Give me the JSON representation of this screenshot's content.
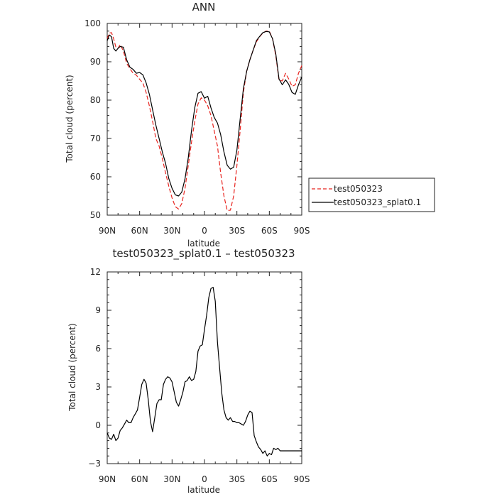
{
  "chart_data": [
    {
      "type": "line",
      "title": "ANN",
      "xlabel": "latitude",
      "ylabel": "Total cloud (percent)",
      "xlim": [
        90,
        -90
      ],
      "ylim": [
        50,
        100
      ],
      "x_ticks": [
        {
          "v": 90,
          "label": "90N"
        },
        {
          "v": 60,
          "label": "60N"
        },
        {
          "v": 30,
          "label": "30N"
        },
        {
          "v": 0,
          "label": "0"
        },
        {
          "v": -30,
          "label": "30S"
        },
        {
          "v": -60,
          "label": "60S"
        },
        {
          "v": -90,
          "label": "90S"
        }
      ],
      "y_ticks": [
        "50",
        "60",
        "70",
        "80",
        "90",
        "100"
      ],
      "y_tick_values": [
        50,
        60,
        70,
        80,
        90,
        100
      ],
      "legend_position": "right",
      "series": [
        {
          "name": "test050323",
          "color": "#e8241f",
          "dash": "dashed",
          "x": [
            90,
            88,
            86,
            84,
            82,
            80,
            78,
            75,
            72,
            69,
            66,
            63,
            60,
            57,
            54,
            51,
            48,
            45,
            42,
            39,
            36,
            33,
            30,
            27,
            24,
            21,
            18,
            15,
            12,
            9,
            6,
            3,
            0,
            -3,
            -6,
            -9,
            -12,
            -15,
            -18,
            -21,
            -24,
            -27,
            -30,
            -33,
            -36,
            -39,
            -42,
            -45,
            -48,
            -51,
            -54,
            -57,
            -60,
            -63,
            -66,
            -69,
            -72,
            -75,
            -78,
            -81,
            -84,
            -87,
            -90
          ],
          "y": [
            96,
            97.5,
            97.6,
            96,
            93.8,
            93.5,
            94.5,
            92.8,
            89.6,
            88.2,
            87,
            86.5,
            85.4,
            84.5,
            82,
            78.5,
            74.5,
            70,
            68,
            64.8,
            61,
            57.5,
            54.5,
            52.2,
            51.6,
            53,
            57,
            63,
            69,
            74.5,
            79,
            80.6,
            80,
            78.5,
            76,
            72,
            68,
            61,
            55,
            51.2,
            51.3,
            55,
            63,
            72,
            82,
            87.5,
            90.5,
            93,
            95.2,
            96.5,
            97.5,
            98,
            98,
            96,
            91.5,
            85.2,
            85,
            87,
            85.5,
            83.6,
            84,
            87,
            89
          ]
        },
        {
          "name": "test050323_splat0.1",
          "color": "#000000",
          "dash": "solid",
          "x": [
            90,
            88,
            86,
            84,
            82,
            80,
            78,
            75,
            72,
            69,
            66,
            63,
            60,
            57,
            54,
            51,
            48,
            45,
            42,
            39,
            36,
            33,
            30,
            27,
            24,
            21,
            18,
            15,
            12,
            9,
            6,
            3,
            0,
            -3,
            -6,
            -9,
            -12,
            -15,
            -18,
            -21,
            -24,
            -27,
            -30,
            -33,
            -36,
            -39,
            -42,
            -45,
            -48,
            -51,
            -54,
            -57,
            -60,
            -63,
            -66,
            -69,
            -72,
            -75,
            -78,
            -81,
            -84,
            -87,
            -90
          ],
          "y": [
            95.5,
            97,
            96.5,
            93.5,
            92.8,
            93.5,
            94,
            93.8,
            90.5,
            88.6,
            88,
            87,
            87.2,
            86.6,
            84.5,
            81.5,
            77.5,
            73.5,
            70,
            66.5,
            63.5,
            59.5,
            57,
            55.3,
            55,
            56,
            59.5,
            65,
            72,
            78,
            81.8,
            82.2,
            80.5,
            81,
            78,
            75.5,
            74,
            71,
            66.5,
            63,
            62,
            62.5,
            67,
            75,
            83,
            87.5,
            90.5,
            93,
            95.5,
            96.6,
            97.6,
            97.9,
            97.8,
            96,
            92,
            85.5,
            84,
            85.3,
            84.1,
            82,
            81.5,
            84,
            86
          ]
        }
      ]
    },
    {
      "type": "line",
      "title": "test050323_splat0.1 – test050323",
      "xlabel": "latitude",
      "ylabel": "Total cloud (percent)",
      "xlim": [
        90,
        -90
      ],
      "ylim": [
        -3,
        12
      ],
      "x_ticks": [
        {
          "v": 90,
          "label": "90N"
        },
        {
          "v": 60,
          "label": "60N"
        },
        {
          "v": 30,
          "label": "30N"
        },
        {
          "v": 0,
          "label": "0"
        },
        {
          "v": -30,
          "label": "30S"
        },
        {
          "v": -60,
          "label": "60S"
        },
        {
          "v": -90,
          "label": "90S"
        }
      ],
      "y_ticks": [
        "−3",
        "0",
        "3",
        "6",
        "9",
        "12"
      ],
      "y_tick_values": [
        -3,
        0,
        3,
        6,
        9,
        12
      ],
      "series": [
        {
          "color": "#000000",
          "dash": "solid",
          "x": [
            90,
            88,
            86,
            84,
            82,
            80,
            78,
            76,
            74,
            72,
            70,
            68,
            66,
            64,
            62,
            60,
            58,
            56,
            54,
            52,
            50,
            48,
            46,
            44,
            42,
            40,
            38,
            36,
            34,
            32,
            30,
            28,
            26,
            24,
            22,
            20,
            18,
            16,
            14,
            12,
            10,
            8,
            6,
            4,
            2,
            0,
            -2,
            -4,
            -6,
            -8,
            -10,
            -12,
            -14,
            -16,
            -18,
            -20,
            -22,
            -24,
            -26,
            -28,
            -30,
            -32,
            -34,
            -36,
            -38,
            -40,
            -42,
            -44,
            -46,
            -48,
            -50,
            -52,
            -54,
            -56,
            -58,
            -60,
            -62,
            -64,
            -66,
            -68,
            -70,
            -72,
            -74,
            -76,
            -78,
            -80,
            -82,
            -84,
            -86,
            -88,
            -90
          ],
          "y": [
            -0.6,
            -1.0,
            -1.1,
            -0.7,
            -1.2,
            -1.0,
            -0.4,
            -0.2,
            0.1,
            0.4,
            0.2,
            0.2,
            0.6,
            0.9,
            1.2,
            2.2,
            3.2,
            3.6,
            3.3,
            2.0,
            0.3,
            -0.5,
            0.6,
            1.7,
            2.0,
            2.0,
            3.2,
            3.6,
            3.8,
            3.7,
            3.4,
            2.6,
            1.8,
            1.5,
            2.0,
            2.6,
            3.4,
            3.5,
            3.8,
            3.5,
            3.6,
            4.2,
            5.8,
            6.2,
            6.3,
            7.5,
            8.6,
            10.0,
            10.7,
            10.8,
            9.7,
            6.5,
            4.5,
            2.5,
            1.2,
            0.6,
            0.4,
            0.6,
            0.3,
            0.3,
            0.2,
            0.2,
            0.1,
            0.0,
            0.3,
            0.8,
            1.1,
            1.0,
            -0.8,
            -1.3,
            -1.7,
            -1.9,
            -2.2,
            -2.0,
            -2.4,
            -2.2,
            -2.3,
            -1.8,
            -1.9,
            -1.8,
            -2.0,
            -2.0,
            -2.0,
            -2.0,
            -2.0,
            -2.0,
            -2.0,
            -2.0,
            -2.0,
            -2.0,
            -2.0
          ]
        }
      ]
    }
  ]
}
